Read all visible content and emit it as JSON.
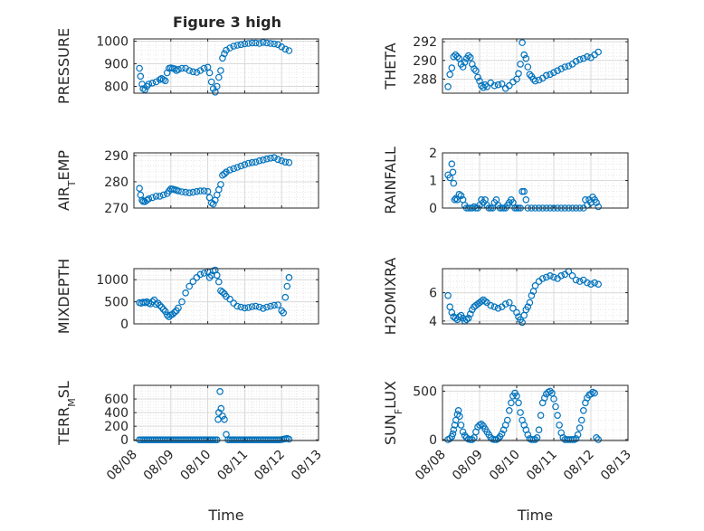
{
  "figure": {
    "title": "Figure 3 high",
    "x_tick_labels": [
      "08/08",
      "08/09",
      "08/10",
      "08/11",
      "08/12",
      "08/13"
    ],
    "x_label": "Time"
  },
  "style": {
    "marker_color": "#0072BD",
    "axes_color": "#262626",
    "grid_color": "#d9d9d9",
    "background": "#ffffff"
  },
  "chart_data": [
    {
      "type": "scatter",
      "ylabel": "PRESSURE",
      "xlim": [
        0,
        5
      ],
      "ylim": [
        770,
        1010
      ],
      "yticks": [
        800,
        900,
        1000
      ],
      "grid": true,
      "minor_grid": true,
      "x": [
        0.15,
        0.18,
        0.22,
        0.25,
        0.3,
        0.35,
        0.4,
        0.5,
        0.6,
        0.7,
        0.75,
        0.8,
        0.85,
        0.9,
        0.95,
        1.0,
        1.05,
        1.1,
        1.15,
        1.2,
        1.3,
        1.4,
        1.5,
        1.6,
        1.7,
        1.8,
        1.9,
        2.0,
        2.05,
        2.1,
        2.15,
        2.2,
        2.25,
        2.3,
        2.35,
        2.4,
        2.45,
        2.5,
        2.6,
        2.7,
        2.8,
        2.9,
        3.0,
        3.1,
        3.2,
        3.3,
        3.4,
        3.5,
        3.6,
        3.7,
        3.8,
        3.9,
        4.0,
        4.1,
        4.2
      ],
      "y": [
        880,
        845,
        810,
        790,
        785,
        800,
        810,
        815,
        820,
        830,
        835,
        830,
        825,
        860,
        880,
        882,
        880,
        878,
        870,
        875,
        880,
        880,
        870,
        865,
        862,
        870,
        880,
        885,
        860,
        820,
        790,
        775,
        800,
        840,
        870,
        925,
        945,
        960,
        970,
        978,
        982,
        985,
        988,
        990,
        992,
        992,
        990,
        995,
        992,
        990,
        988,
        985,
        975,
        965,
        958
      ]
    },
    {
      "type": "scatter",
      "ylabel": "THETA",
      "xlim": [
        0,
        5
      ],
      "ylim": [
        286.5,
        292.3
      ],
      "yticks": [
        288,
        290,
        292
      ],
      "grid": true,
      "minor_grid": true,
      "x": [
        0.15,
        0.2,
        0.25,
        0.3,
        0.35,
        0.4,
        0.45,
        0.5,
        0.55,
        0.6,
        0.65,
        0.7,
        0.75,
        0.8,
        0.85,
        0.9,
        0.95,
        1.0,
        1.05,
        1.1,
        1.15,
        1.2,
        1.3,
        1.4,
        1.5,
        1.6,
        1.7,
        1.8,
        1.9,
        2.0,
        2.05,
        2.1,
        2.15,
        2.2,
        2.25,
        2.3,
        2.35,
        2.4,
        2.45,
        2.5,
        2.6,
        2.7,
        2.8,
        2.9,
        3.0,
        3.1,
        3.2,
        3.3,
        3.4,
        3.5,
        3.6,
        3.7,
        3.8,
        3.9,
        4.0,
        4.1,
        4.2
      ],
      "y": [
        287.2,
        288.5,
        289.2,
        290.4,
        290.6,
        290.4,
        290.2,
        289.6,
        289.3,
        289.8,
        290.2,
        290.5,
        290.3,
        289.6,
        289.1,
        288.9,
        288.2,
        287.8,
        287.3,
        287.1,
        287.4,
        287.2,
        287.6,
        287.3,
        287.4,
        287.5,
        287.0,
        287.3,
        287.7,
        288.0,
        288.6,
        289.6,
        291.9,
        290.6,
        290.2,
        289.3,
        288.5,
        288.3,
        288.0,
        287.8,
        287.9,
        288.1,
        288.4,
        288.5,
        288.7,
        288.9,
        289.1,
        289.3,
        289.4,
        289.6,
        289.9,
        290.1,
        290.2,
        290.4,
        290.3,
        290.6,
        290.9
      ]
    },
    {
      "type": "scatter",
      "ylabel": "AIR_TEMP",
      "xlim": [
        0,
        5
      ],
      "ylim": [
        270,
        291
      ],
      "yticks": [
        270,
        280,
        290
      ],
      "grid": true,
      "minor_grid": true,
      "x": [
        0.15,
        0.18,
        0.22,
        0.25,
        0.3,
        0.35,
        0.4,
        0.5,
        0.6,
        0.7,
        0.8,
        0.9,
        0.95,
        1.0,
        1.05,
        1.1,
        1.15,
        1.2,
        1.3,
        1.4,
        1.5,
        1.6,
        1.7,
        1.8,
        1.9,
        2.0,
        2.05,
        2.1,
        2.15,
        2.2,
        2.25,
        2.3,
        2.35,
        2.4,
        2.45,
        2.5,
        2.6,
        2.7,
        2.8,
        2.9,
        3.0,
        3.1,
        3.2,
        3.3,
        3.4,
        3.5,
        3.6,
        3.7,
        3.8,
        3.9,
        4.0,
        4.1,
        4.2
      ],
      "y": [
        277.5,
        275,
        273,
        272.5,
        272.4,
        273,
        273.5,
        274,
        274.5,
        274.5,
        275,
        275.5,
        276.5,
        277.3,
        277.2,
        277.0,
        276.8,
        276.5,
        276.2,
        276.0,
        275.8,
        276.0,
        276.3,
        276.5,
        276.5,
        276.3,
        274,
        272,
        271.5,
        273,
        275,
        277,
        279,
        282.5,
        283,
        283.7,
        284.5,
        285,
        285.5,
        286,
        286.5,
        287,
        287.3,
        287.5,
        288,
        288.3,
        288.7,
        289,
        289.2,
        288.5,
        288,
        287.5,
        287.3
      ]
    },
    {
      "type": "scatter",
      "ylabel": "RAINFALL",
      "xlim": [
        0,
        5
      ],
      "ylim": [
        0,
        2
      ],
      "yticks": [
        0,
        1,
        2
      ],
      "grid": true,
      "minor_grid": true,
      "x": [
        0.15,
        0.2,
        0.25,
        0.28,
        0.3,
        0.33,
        0.36,
        0.4,
        0.45,
        0.5,
        0.55,
        0.6,
        0.65,
        0.7,
        0.75,
        0.8,
        0.85,
        0.9,
        0.95,
        1.0,
        1.05,
        1.1,
        1.15,
        1.2,
        1.25,
        1.3,
        1.35,
        1.4,
        1.45,
        1.5,
        1.55,
        1.6,
        1.65,
        1.7,
        1.75,
        1.8,
        1.85,
        1.9,
        1.95,
        2.0,
        2.05,
        2.1,
        2.15,
        2.2,
        2.25,
        2.3,
        2.4,
        2.5,
        2.6,
        2.7,
        2.8,
        2.9,
        3.0,
        3.1,
        3.2,
        3.3,
        3.4,
        3.5,
        3.6,
        3.7,
        3.8,
        3.85,
        3.9,
        3.95,
        4.0,
        4.05,
        4.1,
        4.15,
        4.2
      ],
      "y": [
        1.2,
        1.1,
        1.6,
        1.3,
        0.9,
        0.3,
        0.35,
        0.3,
        0.5,
        0.45,
        0.3,
        0.1,
        0.0,
        0.0,
        0.0,
        0.0,
        0.05,
        0.0,
        0.0,
        0.1,
        0.3,
        0.2,
        0.3,
        0.1,
        0.0,
        0.0,
        0.0,
        0.2,
        0.3,
        0.1,
        0.0,
        0.0,
        0.0,
        0.0,
        0.1,
        0.2,
        0.3,
        0.2,
        0.0,
        0.0,
        0.0,
        0.0,
        0.6,
        0.6,
        0.3,
        0.0,
        0.0,
        0.0,
        0.0,
        0.0,
        0.0,
        0.0,
        0.0,
        0.0,
        0.0,
        0.0,
        0.0,
        0.0,
        0.0,
        0.0,
        0.0,
        0.3,
        0.1,
        0.3,
        0.2,
        0.4,
        0.3,
        0.2,
        0.05
      ]
    },
    {
      "type": "scatter",
      "ylabel": "MIXDEPTH",
      "xlim": [
        0,
        5
      ],
      "ylim": [
        0,
        1250
      ],
      "yticks": [
        0,
        500,
        1000
      ],
      "grid": true,
      "minor_grid": true,
      "x": [
        0.15,
        0.2,
        0.25,
        0.3,
        0.35,
        0.4,
        0.45,
        0.5,
        0.55,
        0.6,
        0.65,
        0.7,
        0.75,
        0.8,
        0.85,
        0.9,
        0.95,
        1.0,
        1.05,
        1.1,
        1.15,
        1.2,
        1.3,
        1.4,
        1.5,
        1.6,
        1.7,
        1.8,
        1.9,
        2.0,
        2.05,
        2.1,
        2.15,
        2.2,
        2.25,
        2.3,
        2.35,
        2.4,
        2.45,
        2.5,
        2.6,
        2.7,
        2.8,
        2.9,
        3.0,
        3.1,
        3.2,
        3.3,
        3.4,
        3.5,
        3.6,
        3.7,
        3.8,
        3.9,
        4.0,
        4.05,
        4.1,
        4.15,
        4.2
      ],
      "y": [
        480,
        470,
        490,
        480,
        500,
        470,
        450,
        500,
        540,
        440,
        470,
        420,
        380,
        330,
        280,
        200,
        160,
        200,
        220,
        260,
        300,
        360,
        500,
        700,
        850,
        960,
        1050,
        1120,
        1150,
        1180,
        1050,
        1100,
        1200,
        1220,
        1100,
        950,
        750,
        720,
        680,
        620,
        560,
        470,
        400,
        380,
        360,
        370,
        390,
        400,
        380,
        350,
        380,
        400,
        420,
        430,
        300,
        250,
        600,
        850,
        1050
      ]
    },
    {
      "type": "scatter",
      "ylabel": "H2OMIXRA",
      "xlim": [
        0,
        5
      ],
      "ylim": [
        3.8,
        7.7
      ],
      "yticks": [
        4,
        6
      ],
      "grid": true,
      "minor_grid": true,
      "x": [
        0.15,
        0.2,
        0.25,
        0.3,
        0.35,
        0.4,
        0.45,
        0.5,
        0.55,
        0.6,
        0.65,
        0.7,
        0.75,
        0.8,
        0.85,
        0.9,
        0.95,
        1.0,
        1.05,
        1.1,
        1.15,
        1.2,
        1.3,
        1.4,
        1.5,
        1.6,
        1.7,
        1.8,
        1.9,
        2.0,
        2.05,
        2.1,
        2.15,
        2.2,
        2.25,
        2.3,
        2.35,
        2.4,
        2.45,
        2.5,
        2.6,
        2.7,
        2.8,
        2.9,
        3.0,
        3.1,
        3.2,
        3.3,
        3.4,
        3.5,
        3.6,
        3.7,
        3.8,
        3.9,
        4.0,
        4.1,
        4.2
      ],
      "y": [
        5.8,
        5.0,
        4.6,
        4.3,
        4.2,
        4.1,
        4.3,
        4.4,
        4.2,
        4.0,
        4.1,
        4.2,
        4.5,
        4.8,
        5.0,
        5.1,
        5.2,
        5.3,
        5.4,
        5.5,
        5.4,
        5.3,
        5.1,
        5.0,
        4.9,
        5.0,
        5.2,
        5.3,
        4.9,
        4.6,
        4.3,
        4.1,
        3.9,
        4.4,
        4.8,
        5.0,
        5.3,
        5.8,
        6.1,
        6.5,
        6.8,
        7.0,
        7.1,
        7.2,
        7.1,
        7.0,
        7.2,
        7.3,
        7.5,
        7.2,
        6.9,
        6.8,
        6.9,
        6.7,
        6.6,
        6.7,
        6.6
      ]
    },
    {
      "type": "scatter",
      "ylabel": "TERR_MSL",
      "xlim": [
        0,
        5
      ],
      "ylim": [
        -10,
        800
      ],
      "yticks": [
        0,
        200,
        400,
        600
      ],
      "grid": true,
      "minor_grid": true,
      "x": [
        0.15,
        0.2,
        0.25,
        0.3,
        0.35,
        0.4,
        0.45,
        0.5,
        0.55,
        0.6,
        0.65,
        0.7,
        0.75,
        0.8,
        0.85,
        0.9,
        0.95,
        1.0,
        1.05,
        1.1,
        1.15,
        1.2,
        1.25,
        1.3,
        1.35,
        1.4,
        1.45,
        1.5,
        1.55,
        1.6,
        1.65,
        1.7,
        1.75,
        1.8,
        1.85,
        1.9,
        1.95,
        2.0,
        2.05,
        2.1,
        2.15,
        2.2,
        2.25,
        2.28,
        2.3,
        2.33,
        2.36,
        2.4,
        2.45,
        2.5,
        2.55,
        2.6,
        2.65,
        2.7,
        2.75,
        2.8,
        2.85,
        2.9,
        2.95,
        3.0,
        3.05,
        3.1,
        3.15,
        3.2,
        3.25,
        3.3,
        3.35,
        3.4,
        3.45,
        3.5,
        3.55,
        3.6,
        3.65,
        3.7,
        3.75,
        3.8,
        3.85,
        3.9,
        3.95,
        4.0,
        4.05,
        4.1,
        4.15,
        4.2
      ],
      "y": [
        0,
        0,
        0,
        0,
        0,
        0,
        0,
        0,
        0,
        0,
        0,
        0,
        0,
        0,
        0,
        0,
        0,
        0,
        0,
        0,
        0,
        0,
        0,
        0,
        0,
        0,
        0,
        0,
        0,
        0,
        0,
        0,
        0,
        0,
        0,
        0,
        0,
        0,
        0,
        0,
        0,
        0,
        0,
        300,
        400,
        710,
        460,
        350,
        300,
        80,
        0,
        0,
        0,
        0,
        0,
        0,
        0,
        0,
        0,
        0,
        0,
        0,
        0,
        0,
        0,
        0,
        0,
        0,
        0,
        0,
        0,
        0,
        0,
        0,
        0,
        0,
        0,
        0,
        0,
        5,
        10,
        15,
        20,
        10
      ]
    },
    {
      "type": "scatter",
      "ylabel": "SUN_FLUX",
      "xlim": [
        0,
        5
      ],
      "ylim": [
        -10,
        560
      ],
      "yticks": [
        0,
        500
      ],
      "grid": true,
      "minor_grid": true,
      "x": [
        0.15,
        0.2,
        0.25,
        0.28,
        0.3,
        0.33,
        0.36,
        0.4,
        0.43,
        0.46,
        0.5,
        0.55,
        0.6,
        0.65,
        0.7,
        0.75,
        0.8,
        0.85,
        0.9,
        0.95,
        1.0,
        1.05,
        1.1,
        1.15,
        1.2,
        1.25,
        1.3,
        1.35,
        1.4,
        1.45,
        1.5,
        1.55,
        1.6,
        1.65,
        1.7,
        1.75,
        1.8,
        1.85,
        1.9,
        1.95,
        2.0,
        2.05,
        2.1,
        2.15,
        2.2,
        2.25,
        2.3,
        2.35,
        2.4,
        2.45,
        2.5,
        2.55,
        2.6,
        2.65,
        2.7,
        2.75,
        2.8,
        2.85,
        2.9,
        2.95,
        3.0,
        3.05,
        3.1,
        3.15,
        3.2,
        3.25,
        3.3,
        3.35,
        3.4,
        3.45,
        3.5,
        3.55,
        3.6,
        3.65,
        3.7,
        3.75,
        3.8,
        3.85,
        3.9,
        3.95,
        4.0,
        4.05,
        4.1,
        4.15,
        4.2
      ],
      "y": [
        0,
        10,
        30,
        60,
        100,
        150,
        200,
        260,
        300,
        240,
        150,
        80,
        40,
        20,
        5,
        0,
        0,
        20,
        80,
        130,
        150,
        160,
        140,
        110,
        80,
        50,
        20,
        5,
        0,
        0,
        10,
        30,
        60,
        100,
        150,
        200,
        300,
        380,
        450,
        480,
        450,
        380,
        280,
        200,
        150,
        100,
        50,
        10,
        0,
        0,
        0,
        20,
        100,
        250,
        380,
        430,
        470,
        490,
        500,
        480,
        420,
        340,
        250,
        150,
        70,
        20,
        0,
        0,
        0,
        0,
        0,
        0,
        10,
        50,
        120,
        200,
        300,
        380,
        430,
        460,
        470,
        490,
        480,
        20,
        0
      ]
    }
  ]
}
